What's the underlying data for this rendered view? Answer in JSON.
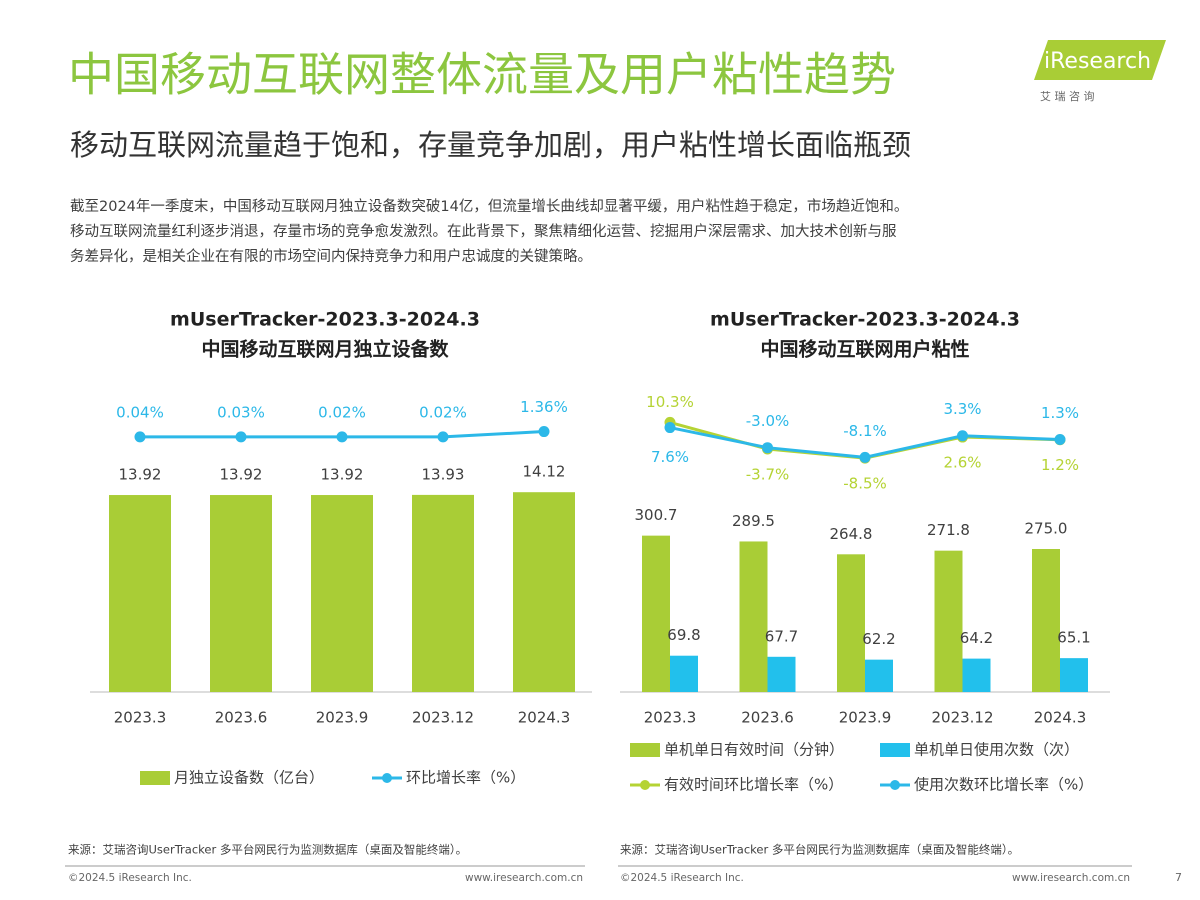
{
  "header": {
    "title": "中国移动互联网整体流量及用户粘性趋势",
    "subtitle": "移动互联网流量趋于饱和，存量竞争加剧，用户粘性增长面临瓶颈",
    "logo": "iResearch",
    "logo_sub": "艾 瑞 咨 询"
  },
  "intro": [
    "截至2024年一季度末，中国移动互联网月独立设备数突破14亿，但流量增长曲线却显著平缓，用户粘性趋于稳定，市场趋近饱和。",
    "移动互联网流量红利逐步消退，存量市场的竞争愈发激烈。在此背景下，聚焦精细化运营、挖掘用户深层需求、加大技术创新与服",
    "务差异化，是相关企业在有限的市场空间内保持竞争力和用户忠诚度的关键策略。"
  ],
  "chart_data": [
    {
      "type": "bar",
      "title": "mUserTracker-2023.3-2024.3",
      "subtitle": "中国移动互联网月独立设备数",
      "categories": [
        "2023.3",
        "2023.6",
        "2023.9",
        "2023.12",
        "2024.3"
      ],
      "series": [
        {
          "name": "月独立设备数（亿台）",
          "type": "bar",
          "color": "#a9cd36",
          "values": [
            13.92,
            13.92,
            13.92,
            13.93,
            14.12
          ]
        },
        {
          "name": "环比增长率（%）",
          "type": "line",
          "color": "#2cb8e8",
          "values": [
            0.04,
            0.03,
            0.02,
            0.02,
            1.36
          ],
          "value_labels": [
            "0.04%",
            "0.03%",
            "0.02%",
            "0.02%",
            "1.36%"
          ]
        }
      ]
    },
    {
      "type": "bar",
      "title": "mUserTracker-2023.3-2024.3",
      "subtitle": "中国移动互联网用户粘性",
      "categories": [
        "2023.3",
        "2023.6",
        "2023.9",
        "2023.12",
        "2024.3"
      ],
      "series": [
        {
          "name": "单机单日有效时间（分钟）",
          "type": "bar",
          "color": "#a9cd36",
          "values": [
            300.7,
            289.5,
            264.8,
            271.8,
            275.0
          ],
          "value_labels": [
            "300.7",
            "289.5",
            "264.8",
            "271.8",
            "275.0"
          ]
        },
        {
          "name": "单机单日使用次数（次）",
          "type": "bar",
          "color": "#22c0ec",
          "values": [
            69.8,
            67.7,
            62.2,
            64.2,
            65.1
          ]
        },
        {
          "name": "有效时间环比增长率（%）",
          "type": "line",
          "color": "#b5d334",
          "values": [
            10.3,
            -3.7,
            -8.5,
            2.6,
            1.2
          ],
          "value_labels": [
            "10.3%",
            "-3.7%",
            "-8.5%",
            "2.6%",
            "1.2%"
          ]
        },
        {
          "name": "使用次数环比增长率（%）",
          "type": "line",
          "color": "#2cb8e8",
          "values": [
            7.6,
            -3.0,
            -8.1,
            3.3,
            1.3
          ],
          "value_labels": [
            "7.6%",
            "-3.0%",
            "-8.1%",
            "3.3%",
            "1.3%"
          ]
        }
      ]
    }
  ],
  "footer": {
    "source_left": "来源：艾瑞咨询UserTracker 多平台网民行为监测数据库（桌面及智能终端）。",
    "source_right": "来源：艾瑞咨询UserTracker 多平台网民行为监测数据库（桌面及智能终端）。",
    "copyright_left": "©2024.5 iResearch Inc.",
    "url_left": "www.iresearch.com.cn",
    "copyright_right": "©2024.5 iResearch Inc.",
    "url_right": "www.iresearch.com.cn",
    "page": "7"
  }
}
